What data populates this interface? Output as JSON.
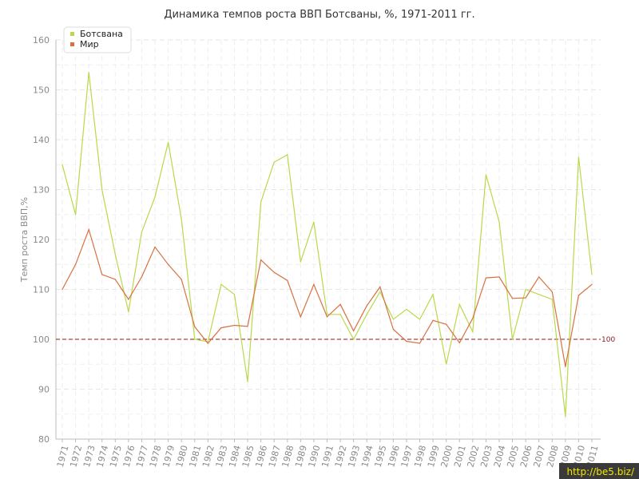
{
  "chart_data": {
    "type": "line",
    "title": "Динамика темпов роста ВВП Ботсваны, %, 1971-2011 гг.",
    "ylabel": "Темп роста ВВП,%",
    "xlabel": "",
    "ylim": [
      80,
      160
    ],
    "yticks": [
      80,
      90,
      100,
      110,
      120,
      130,
      140,
      150,
      160
    ],
    "grid": true,
    "legend": "top-left",
    "x": [
      "1971",
      "1972",
      "1973",
      "1974",
      "1975",
      "1976",
      "1977",
      "1978",
      "1979",
      "1980",
      "1981",
      "1982",
      "1983",
      "1984",
      "1985",
      "1986",
      "1987",
      "1988",
      "1989",
      "1990",
      "1991",
      "1992",
      "1993",
      "1994",
      "1995",
      "1996",
      "1997",
      "1998",
      "1999",
      "2000",
      "2001",
      "2002",
      "2003",
      "2004",
      "2005",
      "2006",
      "2007",
      "2008",
      "2009",
      "2010",
      "2011"
    ],
    "series": [
      {
        "name": "Ботсвана",
        "color": "#b8d94a",
        "values": [
          135,
          125,
          153.5,
          130,
          117,
          105.5,
          121.5,
          128.5,
          139.5,
          124,
          100,
          99.5,
          111,
          109,
          91.5,
          127.5,
          135.5,
          137,
          115.5,
          123.5,
          105,
          105,
          100,
          105,
          109.5,
          104,
          106,
          104,
          109,
          95,
          107,
          101.5,
          133,
          123.5,
          100,
          110,
          109,
          108,
          84.5,
          136.5,
          113
        ]
      },
      {
        "name": "Мир",
        "color": "#d97040",
        "values": [
          110,
          115,
          122,
          113,
          112,
          108,
          112.5,
          118.5,
          115,
          112,
          102.5,
          99.2,
          102.3,
          102.8,
          102.6,
          115.9,
          113.4,
          111.8,
          104.5,
          111,
          104.5,
          107,
          101.7,
          106.7,
          110.5,
          102,
          99.6,
          99.2,
          103.8,
          103,
          99.3,
          104.2,
          112.3,
          112.5,
          108.2,
          108.3,
          112.5,
          109.5,
          94.5,
          108.8,
          111
        ]
      }
    ],
    "reference_line": {
      "value": 100,
      "label": "100",
      "color": "#8b1a1a"
    }
  },
  "watermark": "http://be5.biz/"
}
